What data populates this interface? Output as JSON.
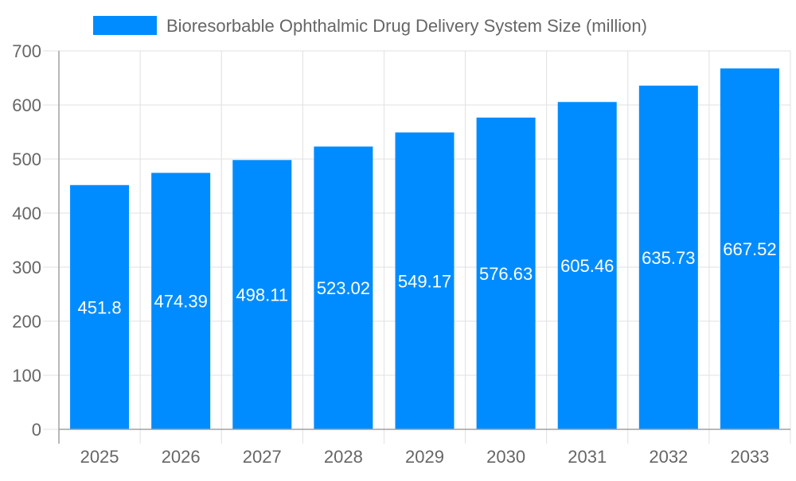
{
  "chart_data": {
    "type": "bar",
    "title": "",
    "xlabel": "",
    "ylabel": "",
    "categories": [
      "2025",
      "2026",
      "2027",
      "2028",
      "2029",
      "2030",
      "2031",
      "2032",
      "2033"
    ],
    "series": [
      {
        "name": "Bioresorbable Ophthalmic Drug Delivery System Size (million)",
        "values": [
          451.8,
          474.39,
          498.11,
          523.02,
          549.17,
          576.63,
          605.46,
          635.73,
          667.52
        ]
      }
    ],
    "data_labels": [
      "451.8",
      "474.39",
      "498.11",
      "523.02",
      "549.17",
      "576.63",
      "605.46",
      "635.73",
      "667.52"
    ],
    "ylim": [
      0,
      700
    ],
    "yticks": [
      "0",
      "100",
      "200",
      "300",
      "400",
      "500",
      "600",
      "700"
    ],
    "grid": true,
    "legend": "top",
    "colors": {
      "bar": "#008cff",
      "grid": "#e0e0e0",
      "axis": "#a0a0a0",
      "text": "#666666",
      "label": "#ffffff"
    }
  }
}
